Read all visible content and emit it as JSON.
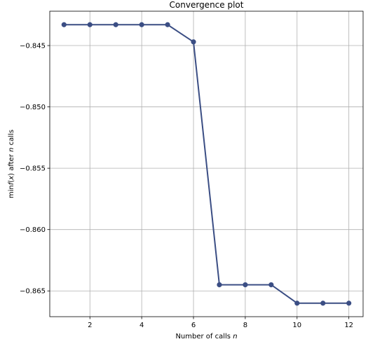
{
  "chart_data": {
    "type": "line",
    "title": "Convergence plot",
    "xlabel_prefix": "Number of calls ",
    "xlabel_var": "n",
    "ylabel_parts": [
      "min",
      "f",
      "(",
      "x",
      ")",
      " after ",
      "n",
      " calls"
    ],
    "x": [
      1,
      2,
      3,
      4,
      5,
      6,
      7,
      8,
      9,
      10,
      11,
      12
    ],
    "series": [
      {
        "values": [
          -0.8433,
          -0.8433,
          -0.8433,
          -0.8433,
          -0.8433,
          -0.8447,
          -0.8645,
          -0.8645,
          -0.8645,
          -0.866,
          -0.866,
          -0.866
        ],
        "color": "#3b4e84"
      }
    ],
    "xticks": [
      2,
      4,
      6,
      8,
      10,
      12
    ],
    "xtick_labels": [
      "2",
      "4",
      "6",
      "8",
      "10",
      "12"
    ],
    "yticks": [
      -0.845,
      -0.85,
      -0.855,
      -0.86,
      -0.865
    ],
    "ytick_labels": [
      "−0.845",
      "−0.850",
      "−0.855",
      "−0.860",
      "−0.865"
    ],
    "xlim": [
      0.45,
      12.55
    ],
    "ylim": [
      -0.8671,
      -0.8422
    ],
    "grid": true,
    "colors": {
      "grid": "#b0b0b0",
      "line": "#3b4e84"
    }
  }
}
